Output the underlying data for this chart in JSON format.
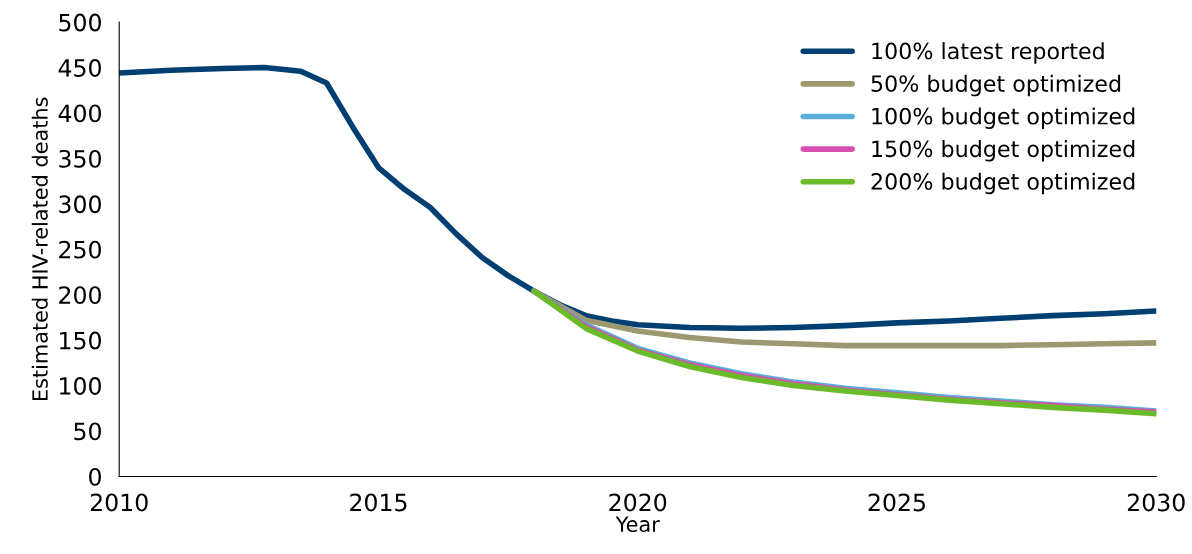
{
  "chart_data": {
    "type": "line",
    "xlabel": "Year",
    "ylabel": "Estimated HIV-related deaths",
    "xlim": [
      2010,
      2030
    ],
    "xticks": [
      2010,
      2015,
      2020,
      2025,
      2030
    ],
    "ylim": [
      0,
      500
    ],
    "yticks": [
      0,
      50,
      100,
      150,
      200,
      250,
      300,
      350,
      400,
      450,
      500
    ],
    "grid": false,
    "legend": "top right",
    "marker": "none",
    "line_style": "solid",
    "series": [
      {
        "name": "100% latest reported",
        "color": "#003f72",
        "x": [
          2010,
          2011,
          2012,
          2012.8,
          2013.5,
          2014,
          2014.5,
          2015,
          2015.5,
          2016,
          2016.5,
          2017,
          2017.5,
          2018,
          2018.5,
          2019,
          2019.5,
          2020,
          2021,
          2022,
          2023,
          2024,
          2025,
          2026,
          2027,
          2028,
          2029,
          2030
        ],
        "values": [
          444,
          447,
          449,
          450,
          446,
          433,
          385,
          340,
          316,
          296,
          267,
          241,
          221,
          204,
          189,
          177,
          171,
          167,
          164,
          163,
          164,
          166,
          169,
          171,
          174,
          177,
          179,
          182
        ]
      },
      {
        "name": "50% budget optimized",
        "color": "#9c9870",
        "x": [
          2018,
          2019,
          2020,
          2021,
          2022,
          2023,
          2024,
          2025,
          2026,
          2027,
          2028,
          2029,
          2030
        ],
        "values": [
          204,
          172,
          160,
          153,
          148,
          146,
          144,
          144,
          144,
          144,
          145,
          146,
          147
        ]
      },
      {
        "name": "100% budget optimized",
        "color": "#5aafd6",
        "x": [
          2018,
          2019,
          2020,
          2021,
          2022,
          2023,
          2024,
          2025,
          2026,
          2027,
          2028,
          2029,
          2030
        ],
        "values": [
          204,
          167,
          141,
          125,
          113,
          104,
          97,
          92,
          87,
          83,
          79,
          76,
          72
        ]
      },
      {
        "name": "150% budget optimized",
        "color": "#d94fb0",
        "x": [
          2018,
          2019,
          2020,
          2021,
          2022,
          2023,
          2024,
          2025,
          2026,
          2027,
          2028,
          2029,
          2030
        ],
        "values": [
          204,
          165,
          139,
          123,
          111,
          102,
          95,
          90,
          85,
          81,
          78,
          74,
          71
        ]
      },
      {
        "name": "200% budget optimized",
        "color": "#6aba2a",
        "x": [
          2018,
          2019,
          2020,
          2021,
          2022,
          2023,
          2024,
          2025,
          2026,
          2027,
          2028,
          2029,
          2030
        ],
        "values": [
          204,
          163,
          138,
          121,
          109,
          100,
          94,
          89,
          84,
          80,
          76,
          73,
          69
        ]
      }
    ]
  }
}
